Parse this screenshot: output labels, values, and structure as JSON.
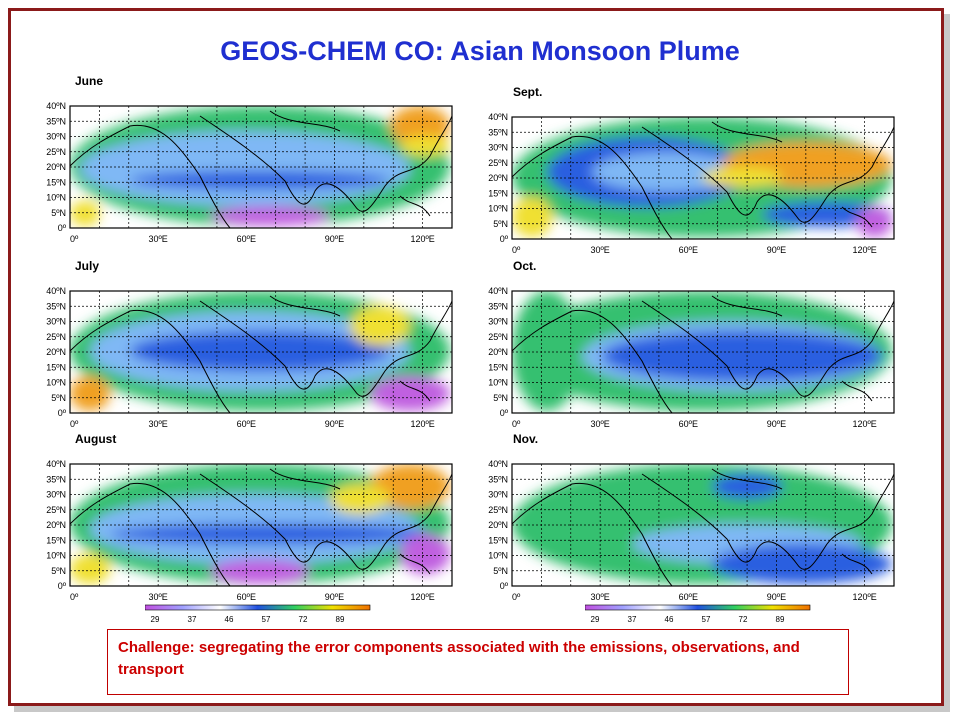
{
  "title": "GEOS-CHEM CO: Asian Monsoon Plume",
  "panels": [
    {
      "month": "June"
    },
    {
      "month": "Sept."
    },
    {
      "month": "July"
    },
    {
      "month": "Oct."
    },
    {
      "month": "August"
    },
    {
      "month": "Nov."
    }
  ],
  "lat_ticks": [
    "40ºN",
    "35ºN",
    "30ºN",
    "25ºN",
    "20ºN",
    "15ºN",
    "10ºN",
    "5ºN",
    "0º"
  ],
  "lon_ticks": [
    "0º",
    "30ºE",
    "60ºE",
    "90ºE",
    "120ºE"
  ],
  "colorbar": {
    "ticks": [
      "29",
      "37",
      "46",
      "57",
      "72",
      "89"
    ],
    "colors": [
      "#c050e0",
      "#a0a0ff",
      "#ffffff",
      "#2050e0",
      "#30d060",
      "#f0e000",
      "#f07000"
    ]
  },
  "challenge_text": "Challenge: segregating the error components associated with the emissions, observations, and transport",
  "colors": {
    "title": "#1f2fd0",
    "frame": "#8b1a1a",
    "challenge": "#cc0000"
  }
}
